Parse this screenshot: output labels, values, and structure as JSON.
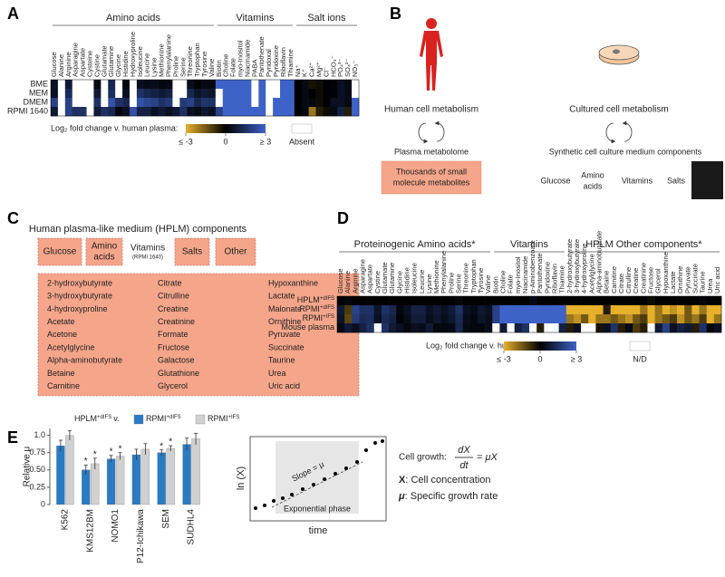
{
  "letters": [
    "A",
    "B",
    "C",
    "D",
    "E"
  ],
  "colorscale": {
    "low": "#e6b02a",
    "mid": "#000000",
    "high": "#3d62c8",
    "absent": "#ffffff"
  },
  "panel_a": {
    "groups": [
      {
        "label": "Amino acids",
        "columns": [
          "Glucose",
          "Alanine",
          "Arginine",
          "Asparagine",
          "Aspartate",
          "Cysteine",
          "Cystine",
          "Glutamate",
          "Glutamine",
          "Glycine",
          "Histidine",
          "Hydroxyproline",
          "Isoleucine",
          "Leucine",
          "Lysine",
          "Methionine",
          "Phenylalanine",
          "Proline",
          "Serine",
          "Threonine",
          "Tryptophan",
          "Tyrosine",
          "Valine"
        ]
      },
      {
        "label": "Vitamins",
        "columns": [
          "Biotin",
          "Choline",
          "Folate",
          "myo-Inositol",
          "Niacinamide",
          "PABA",
          "Pantothenate",
          "Pyridoxal",
          "Pyridoxine",
          "Riboflavin",
          "Thiamine"
        ]
      },
      {
        "label": "Salt ions",
        "columns": [
          "Na⁺",
          "K⁺",
          "Ca²⁺",
          "Mg²⁺",
          "Cl⁻",
          "HCO₃⁻",
          "PO₄³⁻",
          "SO₄²⁻",
          "NO₃⁻"
        ]
      }
    ],
    "rows": [
      "BME",
      "MEM",
      "DMEM",
      "RPMI 1640"
    ],
    "values": [
      [
        0.5,
        null,
        0.8,
        null,
        null,
        null,
        0.3,
        null,
        1.2,
        null,
        0.2,
        null,
        0.5,
        0.3,
        0.4,
        0.2,
        0.3,
        null,
        null,
        0.4,
        0.1,
        0.3,
        0.2,
        3,
        3,
        3,
        3,
        3,
        null,
        3,
        null,
        null,
        3,
        3,
        0,
        0.3,
        -0.3,
        -0.2,
        0,
        0.1,
        0.5,
        0.3,
        null
      ],
      [
        0.5,
        null,
        1.3,
        null,
        null,
        null,
        0.8,
        null,
        1.4,
        null,
        0.5,
        null,
        1.5,
        1.2,
        1,
        0.8,
        1,
        null,
        null,
        1.2,
        0.6,
        0.8,
        0.6,
        null,
        3,
        3,
        3,
        3,
        null,
        3,
        null,
        null,
        3,
        3,
        0,
        0.3,
        0,
        -0.2,
        0,
        0.1,
        0.5,
        0.3,
        null
      ],
      [
        2,
        null,
        2,
        null,
        null,
        null,
        1.5,
        null,
        2.5,
        1.5,
        1.2,
        null,
        2.5,
        2.2,
        2,
        1.5,
        1.8,
        null,
        1.8,
        2,
        1.2,
        1.6,
        1.5,
        null,
        3,
        3,
        3,
        3,
        null,
        3,
        null,
        3,
        3,
        3,
        0,
        0.3,
        0.2,
        -0.2,
        0,
        0.5,
        0.5,
        0.3,
        3
      ],
      [
        0.8,
        null,
        2,
        1.5,
        1.5,
        null,
        0.8,
        1.5,
        1.2,
        0.2,
        0.5,
        2.5,
        1,
        1,
        0.5,
        0.8,
        0.5,
        0.8,
        1.5,
        0.5,
        0.3,
        0.7,
        0.5,
        2,
        3,
        3,
        3,
        3,
        3,
        3,
        null,
        3,
        3,
        3,
        0,
        0.2,
        -2,
        -0.5,
        -0.2,
        0.3,
        1,
        -0.5,
        3
      ]
    ],
    "clim": [
      -3,
      3
    ],
    "legend": {
      "title": "Log₂ fold change v. human plasma:",
      "ticks": [
        {
          "value": -3,
          "label": "≤ -3"
        },
        0,
        {
          "value": 3,
          "label": "≥ 3"
        }
      ],
      "absent": "Absent"
    }
  },
  "panel_b": {
    "left_title": "Human cell metabolism",
    "left_sub": "Plasma metabolome",
    "left_box": [
      "Thousands of small",
      "molecule metabolites"
    ],
    "right_title": "Cultured cell metabolism",
    "right_sub": "Synthetic cell culture medium components",
    "components": [
      "Glucose",
      "Amino",
      "acids",
      "Vitamins",
      "Salts"
    ]
  },
  "panel_c": {
    "title": "Human plasma-like medium (HPLM) components",
    "boxes": [
      "Glucose",
      "Amino",
      "acids",
      "Salts",
      "Other"
    ],
    "vitamins": "Vitamins",
    "vitamins_note": "(RPMI 1640)",
    "other_columns": [
      [
        "2-hydroxybutyrate",
        "3-hydroxybutyrate",
        "4-hydroxyproline",
        "Acetate",
        "Acetone",
        "Acetylglycine",
        "Alpha-aminobutyrate",
        "Betaine",
        "Carnitine"
      ],
      [
        "Citrate",
        "Citrulline",
        "Creatine",
        "Creatinine",
        "Formate",
        "Fructose",
        "Galactose",
        "Glutathione",
        "Glycerol"
      ],
      [
        "Hypoxanthine",
        "Lactate",
        "Malonate",
        "Ornithine",
        "Pyruvate",
        "Succinate",
        "Taurine",
        "Urea",
        "Uric acid"
      ]
    ]
  },
  "panel_d": {
    "groups": [
      {
        "label": "Proteinogenic Amino acids*",
        "columns": [
          "Glucose",
          "Alanine",
          "Arginine",
          "Asparagine",
          "Aspartate",
          "Cystine",
          "Glutamate",
          "Glutamine",
          "Glycine",
          "Histidine",
          "Isoleucine",
          "Leucine",
          "Lysine",
          "Methionine",
          "Phenylalanine",
          "Proline",
          "Serine",
          "Threonine",
          "Tryptophan",
          "Tyrosine",
          "Valine"
        ]
      },
      {
        "label": "Vitamins",
        "columns": [
          "Biotin",
          "Choline",
          "Folate",
          "myo-Inositol",
          "Niacinamide",
          "p-Aminobenzoate",
          "Pantothenate",
          "Pyridoxine",
          "Riboflavin",
          "Thiamine"
        ]
      },
      {
        "label": "HPLM Other components*",
        "columns": [
          "2-hydroxybutyrate",
          "3-hydroxybutyrate",
          "4-hydroxyproline",
          "Acetylglycine",
          "Alpha-aminobutyrate",
          "Betaine",
          "Carnitine",
          "Citrate",
          "Citrulline",
          "Creatine",
          "Creatinine",
          "Fructose",
          "Glycerol",
          "Hypoxanthine",
          "Lactate",
          "Ornithine",
          "Pyruvate",
          "Succinate",
          "Taurine",
          "Urea",
          "Uric acid"
        ]
      }
    ],
    "rows": [
      {
        "name": "HPLM",
        "sup": "+dIFS"
      },
      {
        "name": "RPMI",
        "sup": "+dIFS"
      },
      {
        "name": "RPMI",
        "sup": "+IFS"
      },
      {
        "name": "Mouse plasma"
      }
    ],
    "values": [
      [
        0,
        0.2,
        0,
        0,
        0.1,
        0,
        0,
        0,
        0,
        0,
        0,
        0,
        0,
        0,
        0,
        0,
        0.2,
        0,
        0,
        0,
        0,
        0,
        0,
        0,
        0,
        0,
        0.3,
        0,
        0,
        0,
        0,
        0,
        0,
        0,
        0,
        0,
        0,
        0,
        0,
        0,
        0,
        0,
        -0.2,
        0,
        0,
        0,
        0,
        0,
        0,
        0.2,
        0,
        0
      ],
      [
        0.8,
        -1,
        2,
        1.5,
        1.5,
        0.6,
        1.5,
        1.2,
        0.2,
        0.5,
        1,
        1,
        0.5,
        0.8,
        0.5,
        0.8,
        1.5,
        0.5,
        0.3,
        0.7,
        0.5,
        2,
        3,
        3,
        3,
        3,
        3,
        3,
        3,
        3,
        3,
        -3,
        -3,
        -3,
        -3,
        -3,
        -0.5,
        -3,
        -3,
        -3,
        -3,
        -2,
        -3,
        -2,
        -3,
        -2.5,
        -3,
        -1.5,
        -3,
        -2,
        -3,
        -3
      ],
      [
        0.6,
        -1.2,
        1.8,
        1.3,
        1.4,
        0.5,
        1.3,
        1,
        0.1,
        0.4,
        0.9,
        0.9,
        0.4,
        0.7,
        0.4,
        0.7,
        1.3,
        0.4,
        0.2,
        0.6,
        0.4,
        2,
        3,
        3,
        3,
        3,
        3,
        3,
        3,
        3,
        3,
        -2,
        -2.5,
        -1.5,
        -3,
        -2,
        -2,
        -1.5,
        -2,
        -2.5,
        -1.5,
        -1,
        -3,
        -2,
        -1.5,
        -1,
        -2.5,
        -1.5,
        -2,
        -1,
        -3,
        -2
      ],
      [
        0.3,
        0.8,
        0.5,
        1,
        1.5,
        null,
        1.5,
        0.8,
        0.5,
        0.2,
        0.5,
        0.4,
        0.8,
        0.2,
        0.2,
        0.3,
        1.2,
        0.3,
        0.2,
        0.2,
        0.4,
        null,
        0.8,
        null,
        1,
        1.5,
        null,
        -0.5,
        null,
        null,
        1,
        -0.5,
        0.5,
        null,
        null,
        -0.3,
        0.5,
        1.5,
        -0.5,
        0.3,
        -1,
        -0.5,
        null,
        0.8,
        2,
        0.5,
        1,
        0.8,
        -0.5,
        1.5,
        0.2,
        0.5
      ]
    ],
    "clim": [
      -3,
      3
    ],
    "legend": {
      "title": "Log₂ fold change v. human plasma:",
      "ticks": [
        {
          "value": -3,
          "label": "≤ -3"
        },
        0,
        {
          "value": 3,
          "label": "≥ 3"
        }
      ],
      "absent": "N/D"
    }
  },
  "chart_data": {
    "type": "bar",
    "legend_prefix": {
      "name": "HPLM",
      "sup": "+dIFS",
      "suffix": "v."
    },
    "ylabel": "Relative μ",
    "categories": [
      "K562",
      "KMS12BM",
      "NOMO1",
      "P12-Ichikawa",
      "SEM",
      "SUDHL4"
    ],
    "series": [
      {
        "name": "RPMI",
        "sup": "+dIFS",
        "color": "#2a7bc4",
        "values": [
          0.85,
          0.5,
          0.66,
          0.72,
          0.75,
          0.87
        ],
        "errors": [
          0.08,
          0.07,
          0.05,
          0.08,
          0.04,
          0.09
        ],
        "annotations": [
          null,
          "*",
          "*",
          null,
          "*",
          null
        ]
      },
      {
        "name": "RPMI",
        "sup": "+IFS",
        "color": "#d0d0d0",
        "values": [
          1.0,
          0.59,
          0.7,
          0.8,
          0.81,
          0.95
        ],
        "errors": [
          0.07,
          0.08,
          0.05,
          0.08,
          0.04,
          0.08
        ],
        "annotations": [
          null,
          "*",
          "*",
          null,
          "*",
          null
        ]
      }
    ],
    "ylim": [
      0,
      1.1
    ],
    "yticks": [
      0,
      0.25,
      {
        "value": 0.5,
        "label": "0.50"
      },
      0.75,
      {
        "value": 1,
        "label": "1.0"
      }
    ]
  },
  "panel_e_diagram": {
    "ylabel": "ln (X)",
    "xlabel": "time",
    "slope": "Slope = μ",
    "phase": "Exponential phase",
    "growth_label": "Cell growth:",
    "numerator": "dX",
    "denominator": "dt",
    "rhs": "= μX",
    "defs": [
      {
        "symbol": "X",
        "text": ": Cell concentration"
      },
      {
        "symbol": "μ",
        "text": ": Specific growth rate"
      }
    ]
  }
}
